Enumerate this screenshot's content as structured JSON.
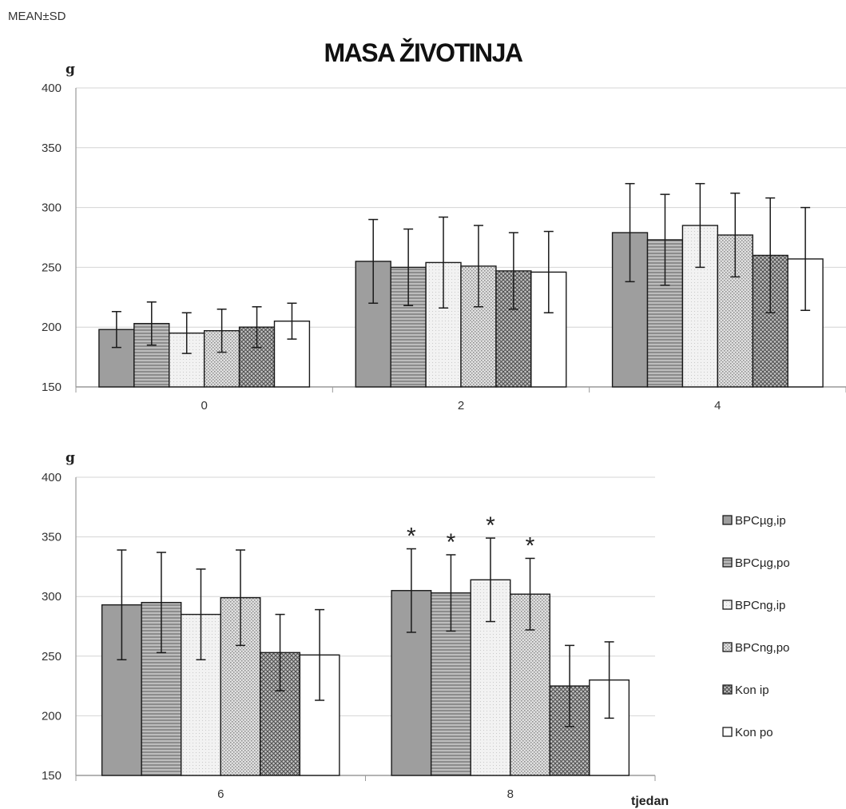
{
  "header": {
    "stat_label": "MEAN±SD",
    "title": "MASA ŽIVOTINJA"
  },
  "chart_data": {
    "type": "bar",
    "title": "MASA ŽIVOTINJA",
    "ylabel": "g",
    "xlabel": "tjedan",
    "ylim": [
      150,
      400
    ],
    "yticks": [
      150,
      200,
      250,
      300,
      350,
      400
    ],
    "grid": true,
    "legend_position": "right",
    "series": [
      {
        "name": "BPCµg,ip",
        "pattern": "solid-gray"
      },
      {
        "name": "BPCµg,po",
        "pattern": "horizontal-lines"
      },
      {
        "name": "BPCng,ip",
        "pattern": "light-dots"
      },
      {
        "name": "BPCng,po",
        "pattern": "fine-dots"
      },
      {
        "name": "Kon ip",
        "pattern": "crosshatch"
      },
      {
        "name": "Kon po",
        "pattern": "white"
      }
    ],
    "panels": [
      {
        "name": "top",
        "categories": [
          "0",
          "2",
          "4"
        ],
        "values": [
          [
            198,
            203,
            195,
            197,
            200,
            205
          ],
          [
            255,
            250,
            254,
            251,
            247,
            246
          ],
          [
            279,
            273,
            285,
            277,
            260,
            257
          ]
        ],
        "errors": [
          [
            15,
            18,
            17,
            18,
            17,
            15
          ],
          [
            35,
            32,
            38,
            34,
            32,
            34
          ],
          [
            41,
            38,
            35,
            35,
            48,
            43
          ]
        ],
        "significant": [
          [
            false,
            false,
            false,
            false,
            false,
            false
          ],
          [
            false,
            false,
            false,
            false,
            false,
            false
          ],
          [
            false,
            false,
            false,
            false,
            false,
            false
          ]
        ]
      },
      {
        "name": "bottom",
        "categories": [
          "6",
          "8"
        ],
        "values": [
          [
            293,
            295,
            285,
            299,
            253,
            251
          ],
          [
            305,
            303,
            314,
            302,
            225,
            230
          ]
        ],
        "errors": [
          [
            46,
            42,
            38,
            40,
            32,
            38
          ],
          [
            35,
            32,
            35,
            30,
            34,
            32
          ]
        ],
        "significant": [
          [
            false,
            false,
            false,
            false,
            false,
            false
          ],
          [
            true,
            true,
            true,
            true,
            false,
            false
          ]
        ]
      }
    ],
    "significance_marker": "*"
  }
}
